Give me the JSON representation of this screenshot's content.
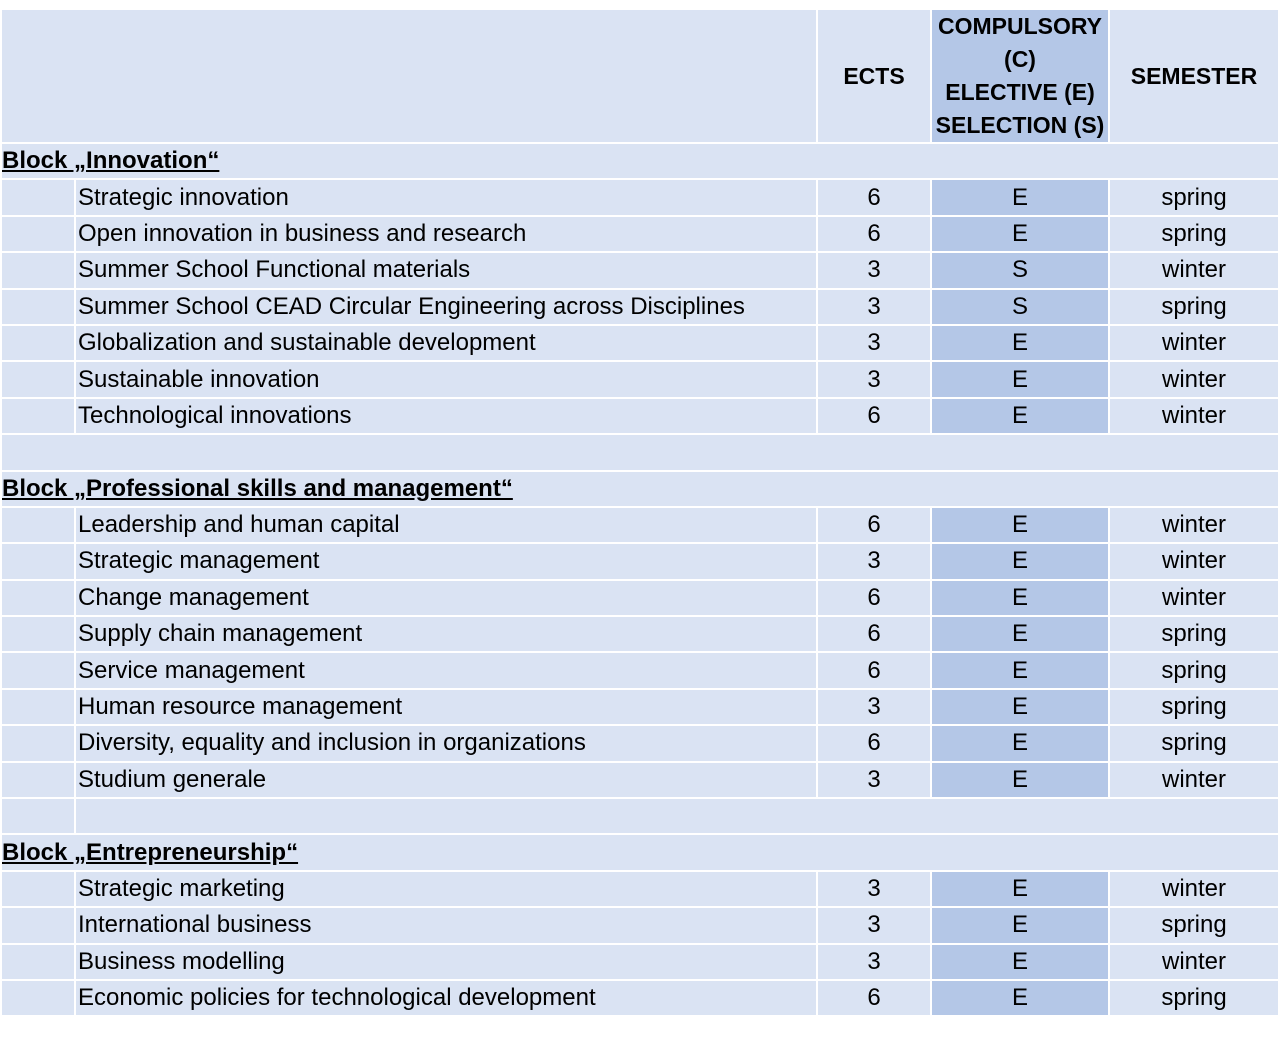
{
  "headers": {
    "ects": "ECTS",
    "type_lines": [
      "COMPULSORY",
      "(C)",
      "ELECTIVE (E)",
      "SELECTION (S)"
    ],
    "semester": "SEMESTER"
  },
  "blocks": [
    {
      "title": "Block „Innovation“",
      "courses": [
        {
          "name": "Strategic innovation",
          "ects": "6",
          "type": "E",
          "semester": "spring"
        },
        {
          "name": "Open innovation in business and research",
          "ects": "6",
          "type": "E",
          "semester": "spring"
        },
        {
          "name": "Summer School Functional materials",
          "ects": "3",
          "type": "S",
          "semester": "winter"
        },
        {
          "name": "Summer School CEAD Circular Engineering across Disciplines",
          "ects": "3",
          "type": "S",
          "semester": "spring"
        },
        {
          "name": "Globalization and sustainable development",
          "ects": "3",
          "type": "E",
          "semester": "winter"
        },
        {
          "name": "Sustainable innovation",
          "ects": "3",
          "type": "E",
          "semester": "winter"
        },
        {
          "name": "Technological innovations",
          "ects": "6",
          "type": "E",
          "semester": "winter"
        }
      ]
    },
    {
      "title": "Block „Professional skills and management“",
      "courses": [
        {
          "name": "Leadership and human capital",
          "ects": "6",
          "type": "E",
          "semester": "winter"
        },
        {
          "name": "Strategic management",
          "ects": "3",
          "type": "E",
          "semester": "winter"
        },
        {
          "name": "Change management",
          "ects": "6",
          "type": "E",
          "semester": "winter"
        },
        {
          "name": "Supply chain management",
          "ects": "6",
          "type": "E",
          "semester": "spring"
        },
        {
          "name": "Service management",
          "ects": "6",
          "type": "E",
          "semester": "spring"
        },
        {
          "name": "Human resource management",
          "ects": "3",
          "type": "E",
          "semester": "spring"
        },
        {
          "name": "Diversity, equality and inclusion in organizations",
          "ects": "6",
          "type": "E",
          "semester": "spring"
        },
        {
          "name": "Studium generale",
          "ects": "3",
          "type": "E",
          "semester": "winter"
        }
      ]
    },
    {
      "title": "Block „Entrepreneurship“",
      "courses": [
        {
          "name": "Strategic marketing",
          "ects": "3",
          "type": "E",
          "semester": "winter"
        },
        {
          "name": "International business",
          "ects": "3",
          "type": "E",
          "semester": "spring"
        },
        {
          "name": "Business modelling",
          "ects": "3",
          "type": "E",
          "semester": "winter"
        },
        {
          "name": "Economic policies for technological development",
          "ects": "6",
          "type": "E",
          "semester": "spring"
        }
      ]
    }
  ],
  "colors": {
    "cell": "#dae3f3",
    "type_column": "#b4c7e7"
  }
}
